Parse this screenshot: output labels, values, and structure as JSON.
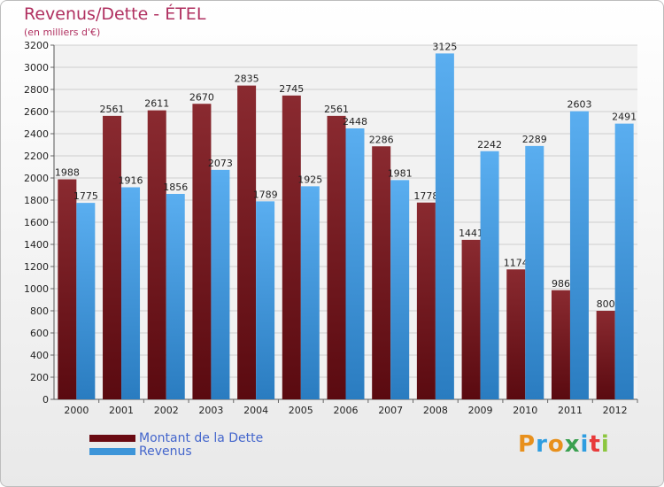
{
  "title": "Revenus/Dette - ÉTEL",
  "subtitle": "(en milliers d'€)",
  "brand": "Proxiti",
  "colors": {
    "debt": "#7a1a22",
    "revenue": "#3d95d9",
    "title": "#b03060",
    "legend_text": "#4466cc"
  },
  "chart_data": {
    "type": "bar",
    "categories": [
      "2000",
      "2001",
      "2002",
      "2003",
      "2004",
      "2005",
      "2006",
      "2007",
      "2008",
      "2009",
      "2010",
      "2011",
      "2012"
    ],
    "series": [
      {
        "name": "Montant de la Dette",
        "values": [
          1988,
          2561,
          2611,
          2670,
          2835,
          2745,
          2561,
          2286,
          1778,
          1441,
          1174,
          986,
          800
        ],
        "labels": [
          "1988",
          "2561",
          "2611",
          "2670",
          "2835",
          "2745",
          "2561",
          "2286",
          "1778",
          "1441",
          "1174",
          "986",
          "800"
        ]
      },
      {
        "name": "Revenus",
        "values": [
          1775,
          1916,
          1856,
          2073,
          1789,
          1925,
          2448,
          1981,
          3125,
          2242,
          2289,
          2603,
          2491
        ],
        "labels": [
          "1775",
          "1916",
          "1856",
          "2073",
          "1789",
          "1925",
          "2448",
          "1981",
          "3125",
          "2242",
          "2289",
          "2603",
          "2491"
        ]
      }
    ],
    "yticks": [
      "0",
      "200",
      "400",
      "600",
      "800",
      "1000",
      "1200",
      "1400",
      "1600",
      "1800",
      "2000",
      "2200",
      "2400",
      "2600",
      "2800",
      "3000",
      "3200"
    ],
    "ylim": [
      0,
      3200
    ],
    "grid": true,
    "legend_position": "bottom-left"
  }
}
